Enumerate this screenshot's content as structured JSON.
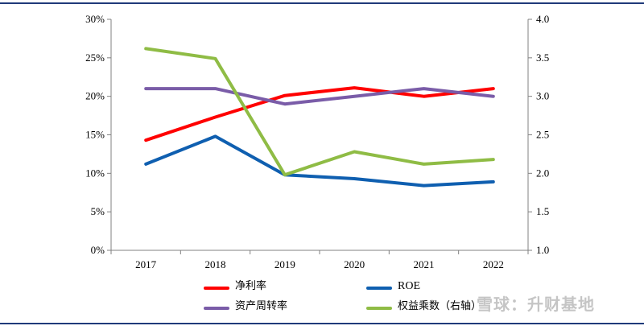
{
  "chart_data": {
    "type": "line",
    "categories": [
      "2017",
      "2018",
      "2019",
      "2020",
      "2021",
      "2022"
    ],
    "left_axis": {
      "ticks": [
        "0%",
        "5%",
        "10%",
        "15%",
        "20%",
        "25%",
        "30%"
      ],
      "ylim": [
        0,
        30
      ],
      "unit": "%"
    },
    "right_axis": {
      "ticks": [
        "1.0",
        "1.5",
        "2.0",
        "2.5",
        "3.0",
        "3.5",
        "4.0"
      ],
      "ylim": [
        1.0,
        4.0
      ]
    },
    "series": [
      {
        "name": "净利率",
        "axis": "left",
        "color": "#ff0000",
        "values": [
          14.3,
          17.3,
          20.1,
          21.1,
          20.0,
          21.0
        ]
      },
      {
        "name": "ROE",
        "axis": "left",
        "color": "#0f5fb0",
        "values": [
          11.2,
          14.8,
          9.8,
          9.3,
          8.4,
          8.9
        ]
      },
      {
        "name": "资产周转率",
        "axis": "left",
        "color": "#7a5ca8",
        "values": [
          21.0,
          21.0,
          19.0,
          20.0,
          21.0,
          20.0
        ]
      },
      {
        "name": "权益乘数（右轴）",
        "axis": "right",
        "color": "#8fbc45",
        "values": [
          3.62,
          3.49,
          1.98,
          2.28,
          2.12,
          2.18
        ]
      }
    ],
    "grid": false,
    "legend_position": "bottom"
  },
  "watermark": "雪球：升财基地"
}
